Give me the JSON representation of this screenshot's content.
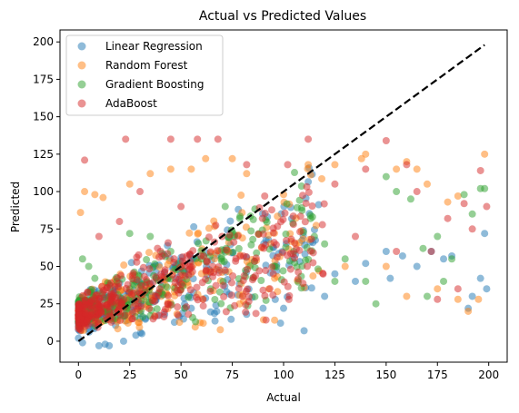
{
  "chart_data": {
    "type": "scatter",
    "title": "Actual vs Predicted Values",
    "xlabel": "Actual",
    "ylabel": "Predicted",
    "xlim": [
      -9,
      209
    ],
    "ylim": [
      -14,
      208
    ],
    "xticks": [
      0,
      25,
      50,
      75,
      100,
      125,
      150,
      175,
      200
    ],
    "yticks": [
      0,
      25,
      50,
      75,
      100,
      125,
      150,
      175,
      200
    ],
    "grid": false,
    "legend_position": "top-left",
    "reference_line": {
      "x": [
        0,
        198
      ],
      "y": [
        0,
        198
      ],
      "style": "dashed",
      "color": "#000000"
    },
    "series": [
      {
        "name": "Linear Regression",
        "color": "#1f77b4",
        "points": [
          [
            0,
            2
          ],
          [
            2,
            -1
          ],
          [
            5,
            8
          ],
          [
            10,
            -3
          ],
          [
            13,
            -2
          ],
          [
            15,
            -3
          ],
          [
            22,
            0
          ],
          [
            28,
            4
          ],
          [
            30,
            15
          ],
          [
            42,
            18
          ],
          [
            55,
            22
          ],
          [
            67,
            24
          ],
          [
            82,
            18
          ],
          [
            90,
            22
          ],
          [
            100,
            22
          ],
          [
            110,
            7
          ],
          [
            120,
            30
          ],
          [
            125,
            45
          ],
          [
            135,
            40
          ],
          [
            140,
            52
          ],
          [
            150,
            60
          ],
          [
            152,
            42
          ],
          [
            158,
            57
          ],
          [
            165,
            50
          ],
          [
            172,
            60
          ],
          [
            178,
            55
          ],
          [
            182,
            57
          ],
          [
            190,
            22
          ],
          [
            192,
            30
          ],
          [
            196,
            42
          ],
          [
            198,
            72
          ],
          [
            199,
            35
          ]
        ]
      },
      {
        "name": "Random Forest",
        "color": "#ff7f0e",
        "points": [
          [
            1,
            86
          ],
          [
            3,
            100
          ],
          [
            8,
            98
          ],
          [
            12,
            96
          ],
          [
            25,
            105
          ],
          [
            35,
            112
          ],
          [
            45,
            115
          ],
          [
            55,
            115
          ],
          [
            62,
            122
          ],
          [
            75,
            122
          ],
          [
            82,
            112
          ],
          [
            100,
            98
          ],
          [
            112,
            118
          ],
          [
            125,
            118
          ],
          [
            138,
            122
          ],
          [
            140,
            125
          ],
          [
            155,
            115
          ],
          [
            160,
            120
          ],
          [
            165,
            115
          ],
          [
            170,
            105
          ],
          [
            175,
            35
          ],
          [
            180,
            93
          ],
          [
            185,
            97
          ],
          [
            190,
            20
          ],
          [
            195,
            28
          ],
          [
            198,
            125
          ],
          [
            185,
            28
          ],
          [
            160,
            30
          ],
          [
            150,
            50
          ],
          [
            130,
            50
          ]
        ]
      },
      {
        "name": "Gradient Boosting",
        "color": "#2ca02c",
        "points": [
          [
            2,
            55
          ],
          [
            5,
            50
          ],
          [
            8,
            42
          ],
          [
            15,
            38
          ],
          [
            25,
            72
          ],
          [
            35,
            70
          ],
          [
            45,
            60
          ],
          [
            60,
            55
          ],
          [
            72,
            62
          ],
          [
            85,
            68
          ],
          [
            95,
            50
          ],
          [
            105,
            60
          ],
          [
            115,
            70
          ],
          [
            125,
            40
          ],
          [
            130,
            55
          ],
          [
            140,
            40
          ],
          [
            150,
            110
          ],
          [
            155,
            100
          ],
          [
            162,
            95
          ],
          [
            168,
            62
          ],
          [
            175,
            70
          ],
          [
            182,
            55
          ],
          [
            188,
            98
          ],
          [
            192,
            85
          ],
          [
            196,
            102
          ],
          [
            198,
            102
          ],
          [
            178,
            40
          ],
          [
            170,
            30
          ],
          [
            145,
            25
          ],
          [
            120,
            65
          ]
        ]
      },
      {
        "name": "AdaBoost",
        "color": "#d62728",
        "points": [
          [
            3,
            121
          ],
          [
            23,
            135
          ],
          [
            45,
            135
          ],
          [
            58,
            135
          ],
          [
            68,
            135
          ],
          [
            82,
            118
          ],
          [
            102,
            118
          ],
          [
            112,
            135
          ],
          [
            125,
            105
          ],
          [
            140,
            115
          ],
          [
            150,
            134
          ],
          [
            160,
            118
          ],
          [
            165,
            100
          ],
          [
            172,
            60
          ],
          [
            180,
            82
          ],
          [
            188,
            92
          ],
          [
            192,
            75
          ],
          [
            196,
            114
          ],
          [
            199,
            90
          ],
          [
            175,
            28
          ],
          [
            185,
            35
          ],
          [
            155,
            60
          ],
          [
            135,
            70
          ],
          [
            95,
            45
          ],
          [
            80,
            30
          ],
          [
            70,
            70
          ],
          [
            50,
            90
          ],
          [
            40,
            60
          ],
          [
            30,
            100
          ],
          [
            20,
            80
          ],
          [
            10,
            70
          ]
        ]
      }
    ]
  }
}
